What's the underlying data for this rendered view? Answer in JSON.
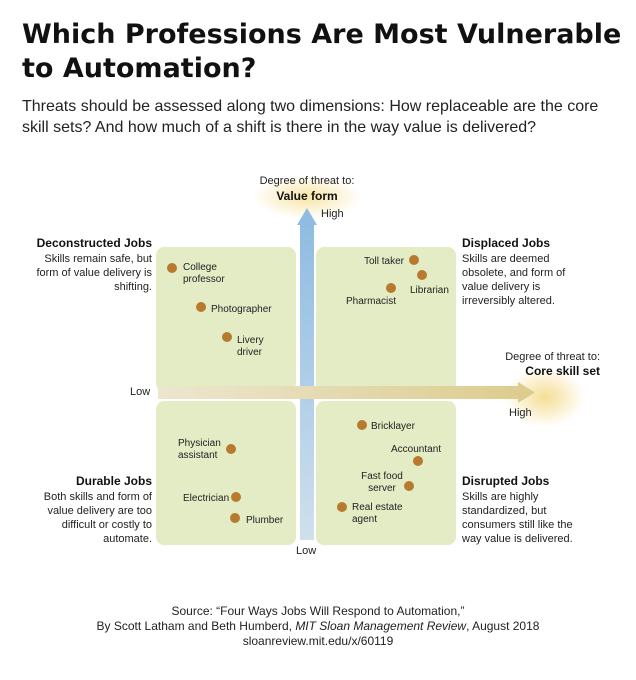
{
  "title": "Which Professions Are Most Vulnerable to Automation?",
  "subtitle": "Threats should be assessed along two dimensions: How replaceable are the core skill sets? And how much of a shift is there in the way value is delivered?",
  "vertical_axis": {
    "caption": "Degree of threat to:",
    "name": "Value form",
    "high": "High",
    "low": "Low"
  },
  "horizontal_axis": {
    "caption": "Degree of threat to:",
    "name": "Core skill set",
    "high": "High",
    "low": "Low"
  },
  "quadrants": {
    "deconstructed": {
      "title": "Deconstructed Jobs",
      "desc": "Skills remain safe, but form of value delivery is shifting."
    },
    "displaced": {
      "title": "Displaced Jobs",
      "desc": "Skills are deemed obsolete, and form of value delivery is irreversibly altered."
    },
    "durable": {
      "title": "Durable Jobs",
      "desc": "Both skills and form of value delivery are too difficult or costly to automate."
    },
    "disrupted": {
      "title": "Disrupted Jobs",
      "desc": "Skills are highly standardized, but consumers still like the way value is delivered."
    }
  },
  "jobs": {
    "college_professor": "College\nprofessor",
    "photographer": "Photographer",
    "livery_driver": "Livery\ndriver",
    "toll_taker": "Toll taker",
    "librarian": "Librarian",
    "pharmacist": "Pharmacist",
    "physician_assistant": "Physician\nassistant",
    "electrician": "Electrician",
    "plumber": "Plumber",
    "bricklayer": "Bricklayer",
    "accountant": "Accountant",
    "fast_food_server": "Fast food\nserver",
    "real_estate_agent": "Real estate\nagent"
  },
  "source": {
    "line1": "Source: “Four Ways Jobs Will Respond to Automation,”",
    "line2_prefix": "By Scott Latham and Beth Humberd, ",
    "line2_journal": "MIT Sloan Management Review",
    "line2_suffix": ", August 2018",
    "line3": "sloanreview.mit.edu/x/60119"
  },
  "colors": {
    "quadrant_fill": "#e3ecc5",
    "dot": "#b77a2e",
    "vertical_arrow": "#9cc3e3",
    "horizontal_arrow": "#e2d6a6",
    "glow": "#f7e3a0"
  }
}
